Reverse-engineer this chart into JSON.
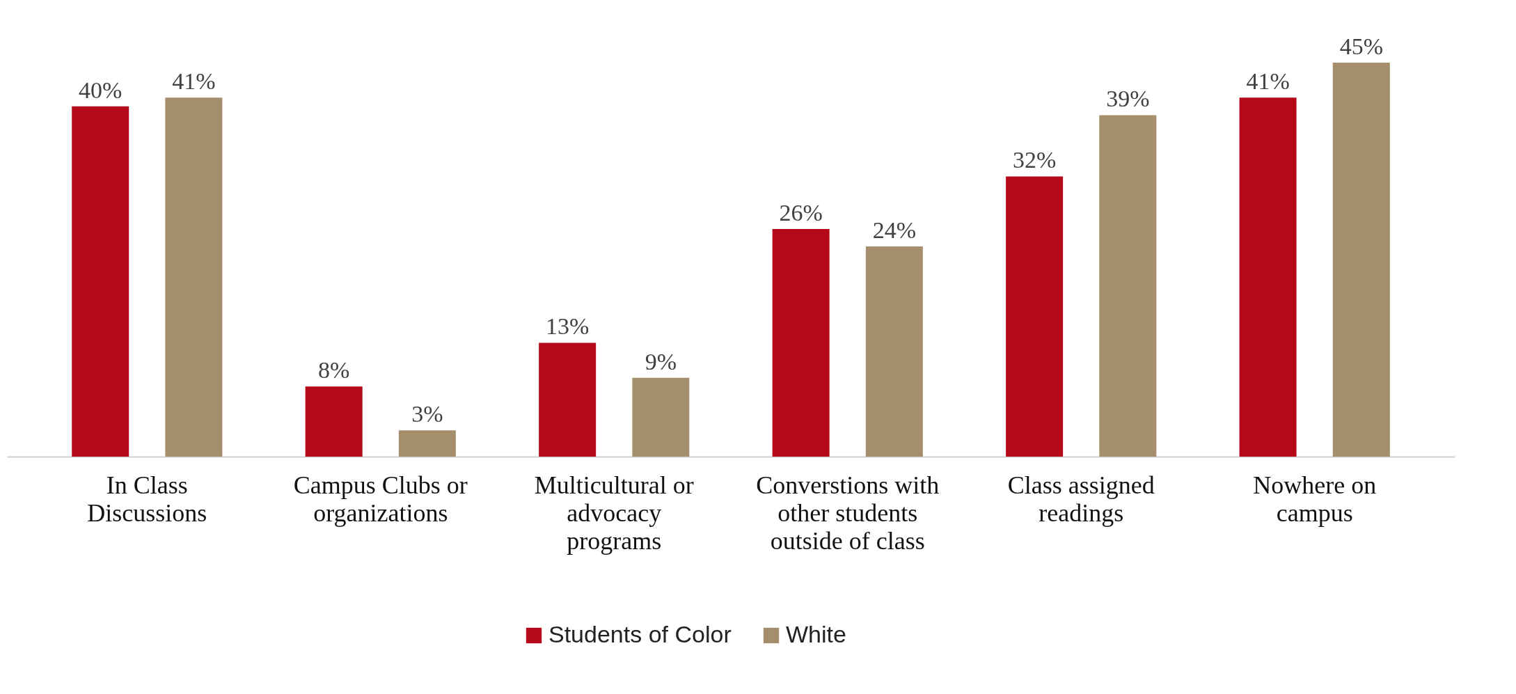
{
  "chart_data": {
    "type": "bar",
    "categories": [
      "In Class\nDiscussions",
      "Campus Clubs or\norganizations",
      "Multicultural or\nadvocacy\nprograms",
      "Converstions with\nother students\noutside of class",
      "Class assigned\nreadings",
      "Nowhere on\ncampus"
    ],
    "series": [
      {
        "name": "Students of Color",
        "color": "#b5091a",
        "values": [
          40,
          8,
          13,
          26,
          32,
          41
        ],
        "value_labels": [
          "40%",
          "8%",
          "13%",
          "26%",
          "32%",
          "41%"
        ]
      },
      {
        "name": "White",
        "color": "#a48e6b",
        "values": [
          41,
          3,
          9,
          24,
          39,
          45
        ],
        "value_labels": [
          "41%",
          "3%",
          "9%",
          "24%",
          "39%",
          "45%"
        ]
      }
    ],
    "legend": "bottom",
    "grid": false
  }
}
